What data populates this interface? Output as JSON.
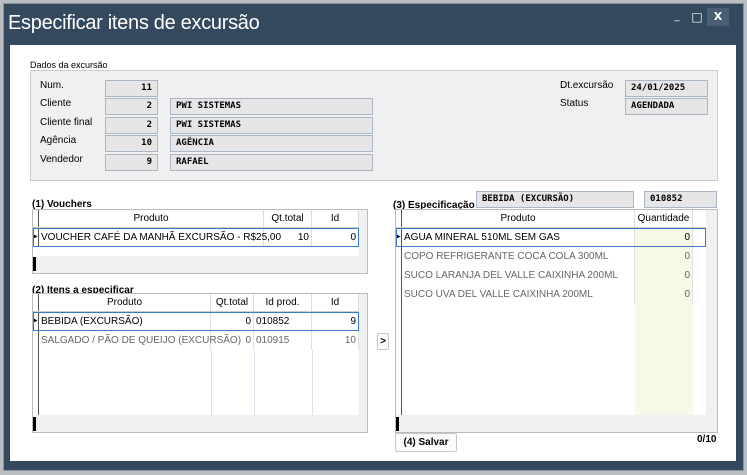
{
  "window": {
    "title": "Especificar itens de excursão",
    "minimize": "_",
    "maximize": "□",
    "close": "X"
  },
  "dados": {
    "group_label": "Dados da excursão",
    "num_label": "Num.",
    "num": "11",
    "cliente_label": "Cliente",
    "cliente_id": "2",
    "cliente_nome": "PWI SISTEMAS",
    "cliente_final_label": "Cliente final",
    "cliente_final_id": "2",
    "cliente_final_nome": "PWI SISTEMAS",
    "agencia_label": "Agência",
    "agencia_id": "10",
    "agencia_nome": "AGÊNCIA",
    "vendedor_label": "Vendedor",
    "vendedor_id": "9",
    "vendedor_nome": "RAFAEL",
    "dt_label": "Dt.excursão",
    "dt": "24/01/2025",
    "status_label": "Status",
    "status": "AGENDADA"
  },
  "vouchers": {
    "label": "(1) Vouchers",
    "columns": [
      "Produto",
      "Qt.total",
      "Id"
    ],
    "rows": [
      {
        "produto": "VOUCHER CAFÉ DA MANHÃ EXCURSÃO - R$25,00",
        "qt": "10",
        "id": "0"
      }
    ]
  },
  "itens": {
    "label": "(2) Itens a especificar",
    "columns": [
      "Produto",
      "Qt.total",
      "Id prod.",
      "Id"
    ],
    "rows": [
      {
        "produto": "BEBIDA (EXCURSÃO)",
        "qt": "0",
        "idprod": "010852",
        "id": "9"
      },
      {
        "produto": "SALGADO / PÃO DE QUEIJO (EXCURSÃO)",
        "qt": "0",
        "idprod": "010915",
        "id": "10"
      }
    ]
  },
  "transfer_button": ">",
  "spec": {
    "label": "(3) Especificação",
    "item": "BEBIDA (EXCURSÃO)",
    "codigo": "010852",
    "columns": [
      "Produto",
      "Quantidade"
    ],
    "rows": [
      {
        "produto": "AGUA MINERAL 510ML SEM GAS",
        "qtd": "0"
      },
      {
        "produto": "COPO REFRIGERANTE COCA COLA 300ML",
        "qtd": "0"
      },
      {
        "produto": "SUCO LARANJA DEL VALLE CAIXINHA 200ML",
        "qtd": "0"
      },
      {
        "produto": "SUCO UVA DEL VALLE CAIXINHA 200ML",
        "qtd": "0"
      }
    ]
  },
  "salvar_label": "(4) Salvar",
  "counter": "0/10",
  "colors": {
    "titlebar": "#34495e",
    "selection": "#3a78c8",
    "qty_column": "#f8f8e6"
  }
}
